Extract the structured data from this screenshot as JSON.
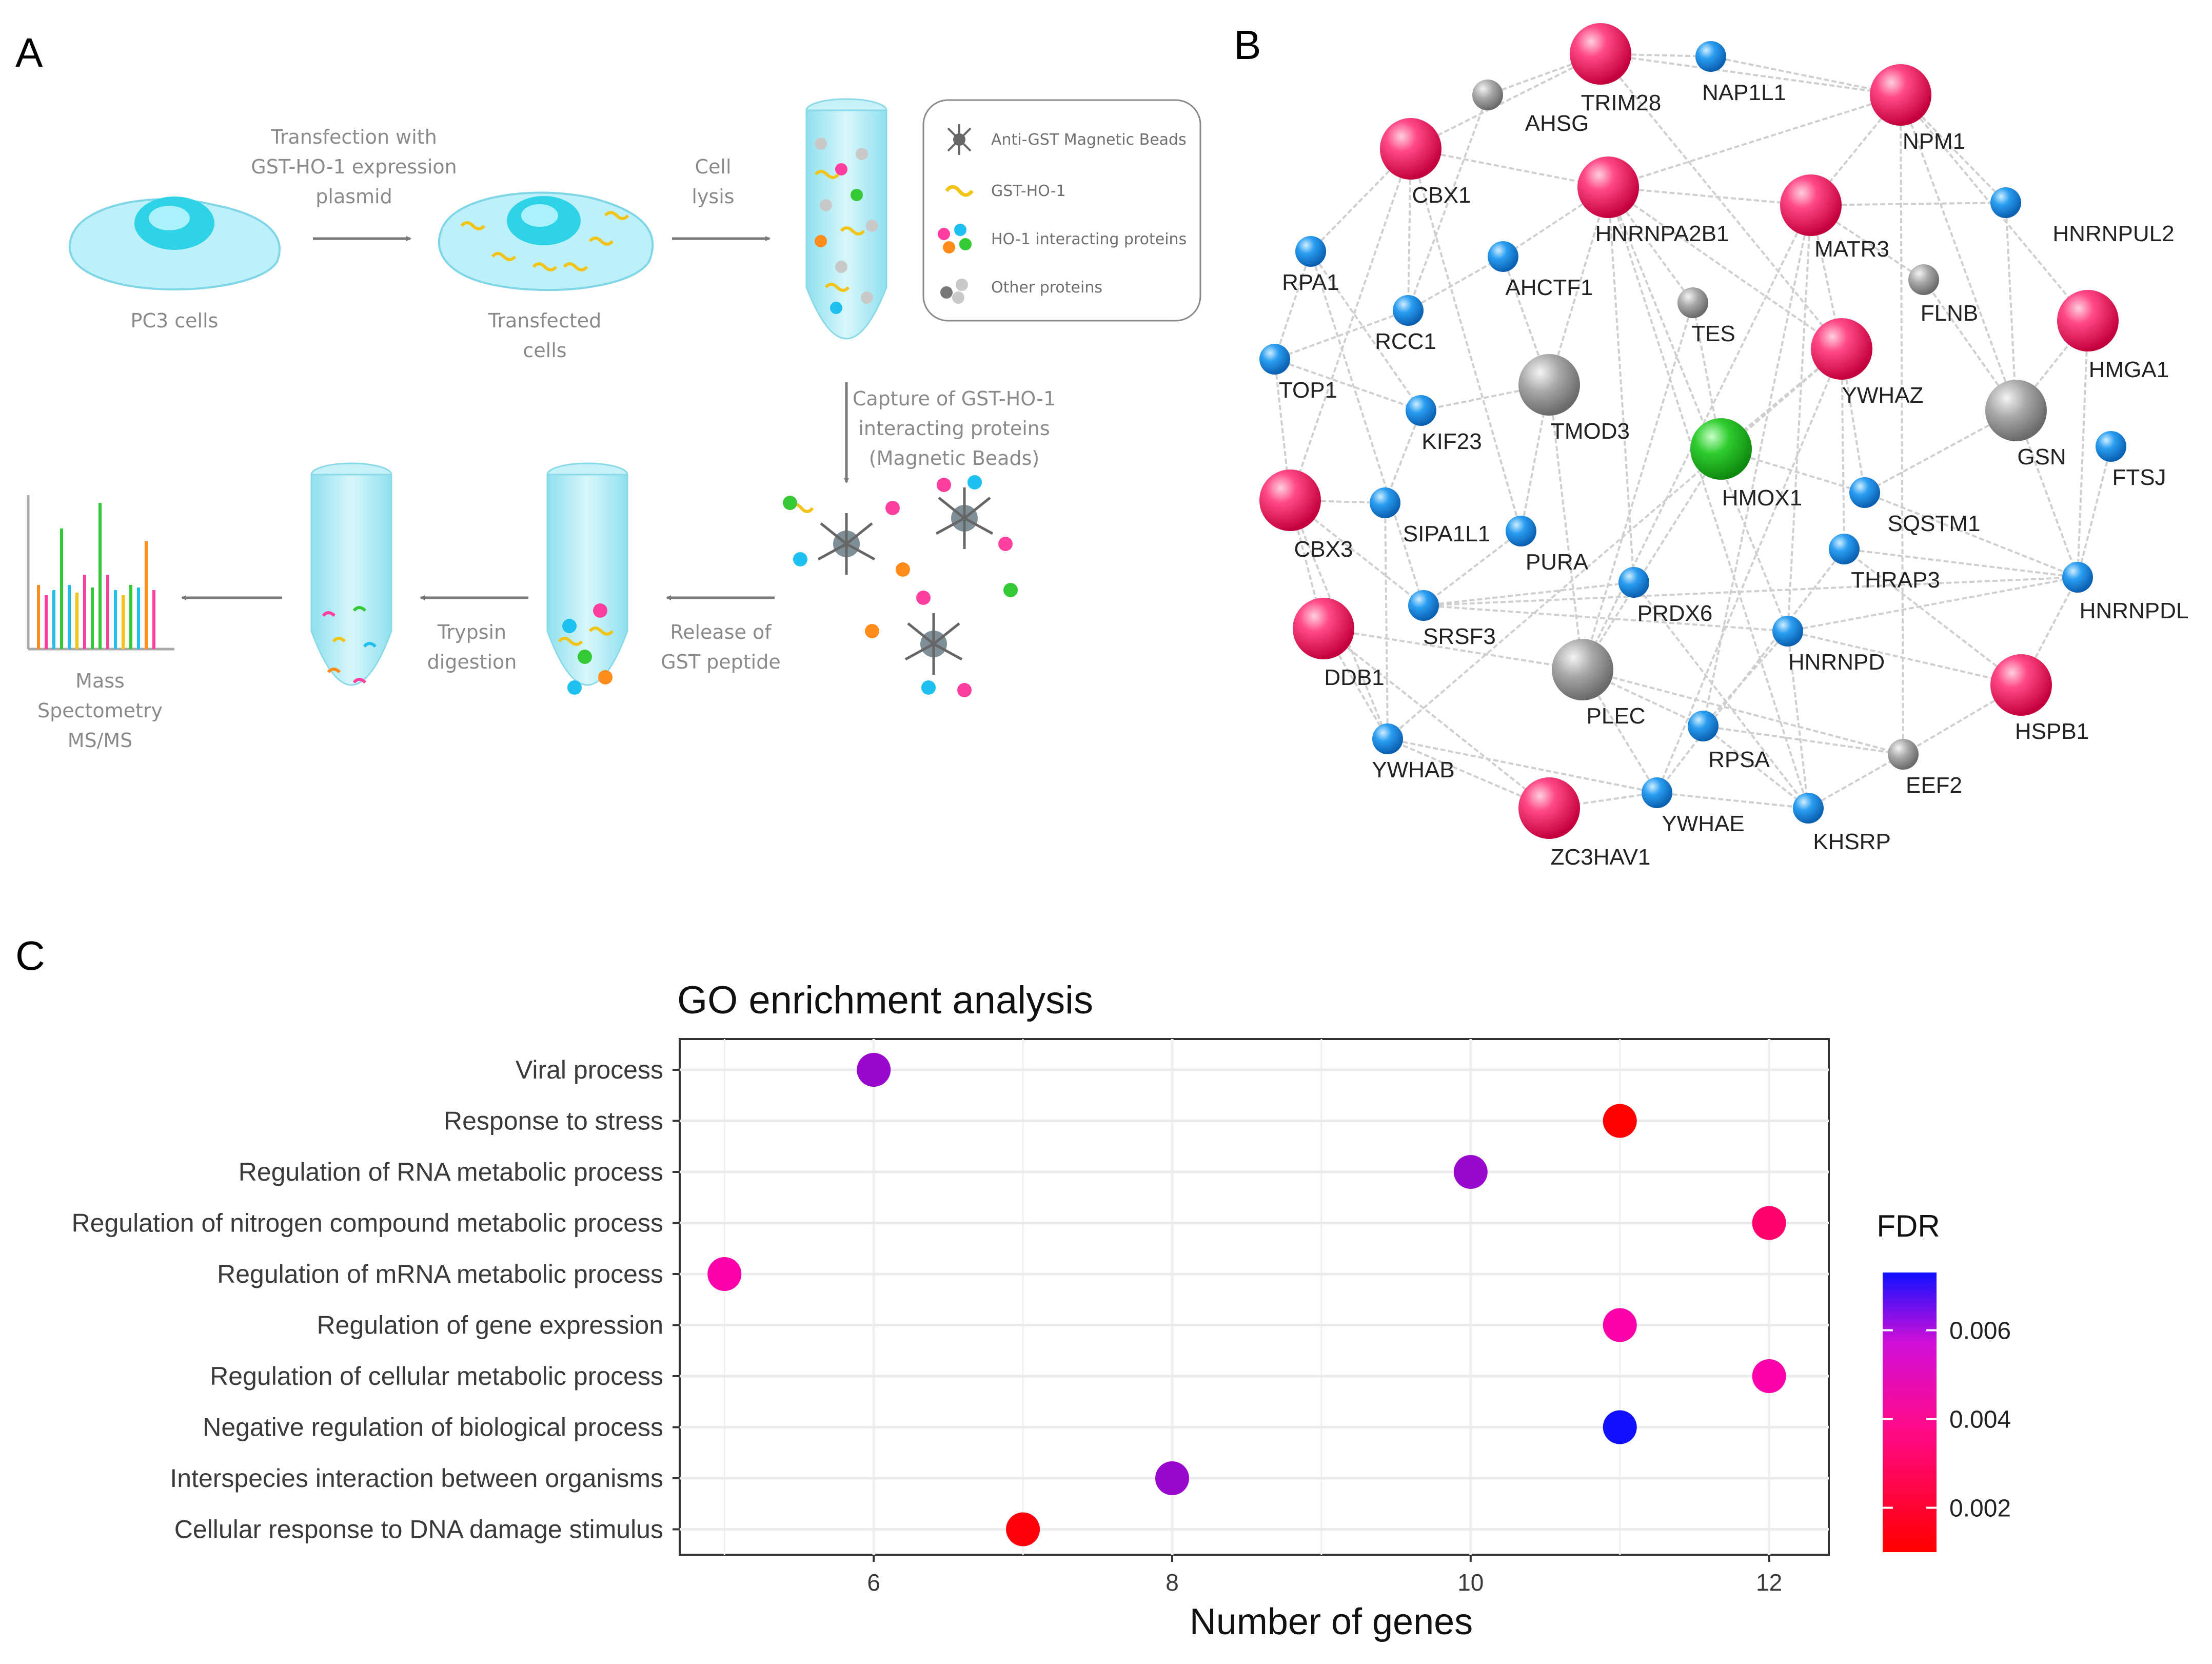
{
  "panels": {
    "a": "A",
    "b": "B",
    "c": "C"
  },
  "workflow": {
    "step1": "PC3 cells",
    "arrow1": [
      "Transfection with",
      "GST-HO-1 expression",
      "plasmid"
    ],
    "step2": [
      "Transfected",
      "cells"
    ],
    "arrow2": [
      "Cell",
      "lysis"
    ],
    "arrow3": [
      "Capture of GST-HO-1",
      "interacting proteins",
      "(Magnetic Beads)"
    ],
    "arrow4": [
      "Release of",
      "GST peptide"
    ],
    "arrow5": [
      "Trypsin",
      "digestion"
    ],
    "final": [
      "Mass",
      "Spectometry",
      "MS/MS"
    ],
    "legend": {
      "beads": "Anti-GST Magnetic Beads",
      "gst": "GST-HO-1",
      "interacting": "HO-1 interacting proteins",
      "other": "Other proteins"
    }
  },
  "network": {
    "colors": {
      "pink": "#ee1f62",
      "blue": "#1a8fe3",
      "grey": "#9b9b9b",
      "green": "#22bb22"
    },
    "nodes": [
      {
        "id": "TRIM28",
        "type": "pink"
      },
      {
        "id": "NAP1L1",
        "type": "blue"
      },
      {
        "id": "AHSG",
        "type": "grey"
      },
      {
        "id": "NPM1",
        "type": "pink"
      },
      {
        "id": "CBX1",
        "type": "pink"
      },
      {
        "id": "HNRNPA2B1",
        "type": "pink"
      },
      {
        "id": "MATR3",
        "type": "pink"
      },
      {
        "id": "HNRNPUL2",
        "type": "blue"
      },
      {
        "id": "RPA1",
        "type": "blue"
      },
      {
        "id": "AHCTF1",
        "type": "blue"
      },
      {
        "id": "FLNB",
        "type": "grey"
      },
      {
        "id": "RCC1",
        "type": "blue"
      },
      {
        "id": "TES",
        "type": "grey"
      },
      {
        "id": "HMGA1",
        "type": "pink"
      },
      {
        "id": "TOP1",
        "type": "blue"
      },
      {
        "id": "YWHAZ",
        "type": "pink"
      },
      {
        "id": "TMOD3",
        "type": "grey"
      },
      {
        "id": "KIF23",
        "type": "blue"
      },
      {
        "id": "GSN",
        "type": "grey"
      },
      {
        "id": "HMOX1",
        "type": "green"
      },
      {
        "id": "FTSJ",
        "type": "blue"
      },
      {
        "id": "CBX3",
        "type": "pink"
      },
      {
        "id": "SIPA1L1",
        "type": "blue"
      },
      {
        "id": "SQSTM1",
        "type": "blue"
      },
      {
        "id": "PURA",
        "type": "blue"
      },
      {
        "id": "THRAP3",
        "type": "blue"
      },
      {
        "id": "PRDX6",
        "type": "blue"
      },
      {
        "id": "HNRNPDL",
        "type": "blue"
      },
      {
        "id": "SRSF3",
        "type": "blue"
      },
      {
        "id": "DDB1",
        "type": "pink"
      },
      {
        "id": "HNRNPD",
        "type": "blue"
      },
      {
        "id": "PLEC",
        "type": "grey"
      },
      {
        "id": "HSPB1",
        "type": "pink"
      },
      {
        "id": "RPSA",
        "type": "blue"
      },
      {
        "id": "EEF2",
        "type": "grey"
      },
      {
        "id": "YWHAB",
        "type": "blue"
      },
      {
        "id": "YWHAE",
        "type": "blue"
      },
      {
        "id": "KHSRP",
        "type": "blue"
      },
      {
        "id": "ZC3HAV1",
        "type": "pink"
      }
    ]
  },
  "chart_data": {
    "type": "scatter",
    "title": "GO enrichment analysis",
    "xlabel": "Number of genes",
    "ylabel": "",
    "xlim": [
      4.7,
      12.4
    ],
    "xticks": [
      6,
      8,
      10,
      12
    ],
    "categories": [
      "Viral process",
      "Response to stress",
      "Regulation of RNA metabolic process",
      "Regulation of nitrogen compound metabolic process",
      "Regulation of mRNA metabolic process",
      "Regulation of gene expression",
      "Regulation of cellular metabolic process",
      "Negative regulation of biological process",
      "Interspecies interaction between organisms",
      "Cellular response to DNA damage stimulus"
    ],
    "points": [
      {
        "term": "Viral process",
        "x": 6,
        "fdr": 0.0055
      },
      {
        "term": "Response to stress",
        "x": 11,
        "fdr": 0.001
      },
      {
        "term": "Regulation of RNA metabolic process",
        "x": 10,
        "fdr": 0.0055
      },
      {
        "term": "Regulation of nitrogen compound metabolic process",
        "x": 12,
        "fdr": 0.003
      },
      {
        "term": "Regulation of mRNA metabolic process",
        "x": 5,
        "fdr": 0.0042
      },
      {
        "term": "Regulation of gene expression",
        "x": 11,
        "fdr": 0.0042
      },
      {
        "term": "Regulation of cellular metabolic process",
        "x": 12,
        "fdr": 0.0042
      },
      {
        "term": "Negative regulation of biological process",
        "x": 11,
        "fdr": 0.0073
      },
      {
        "term": "Interspecies interaction between organisms",
        "x": 8,
        "fdr": 0.0055
      },
      {
        "term": "Cellular response to DNA damage stimulus",
        "x": 7,
        "fdr": 0.0012
      }
    ],
    "color_scale": {
      "title": "FDR",
      "range": [
        0.001,
        0.0073
      ],
      "ticks": [
        "0.006",
        "0.004",
        "0.002"
      ],
      "tick_values": [
        0.006,
        0.004,
        0.002
      ],
      "low_color": "#ff0000",
      "mid_color": "#ff00aa",
      "high_color": "#1010ff"
    },
    "grid": true,
    "legend": "right"
  }
}
